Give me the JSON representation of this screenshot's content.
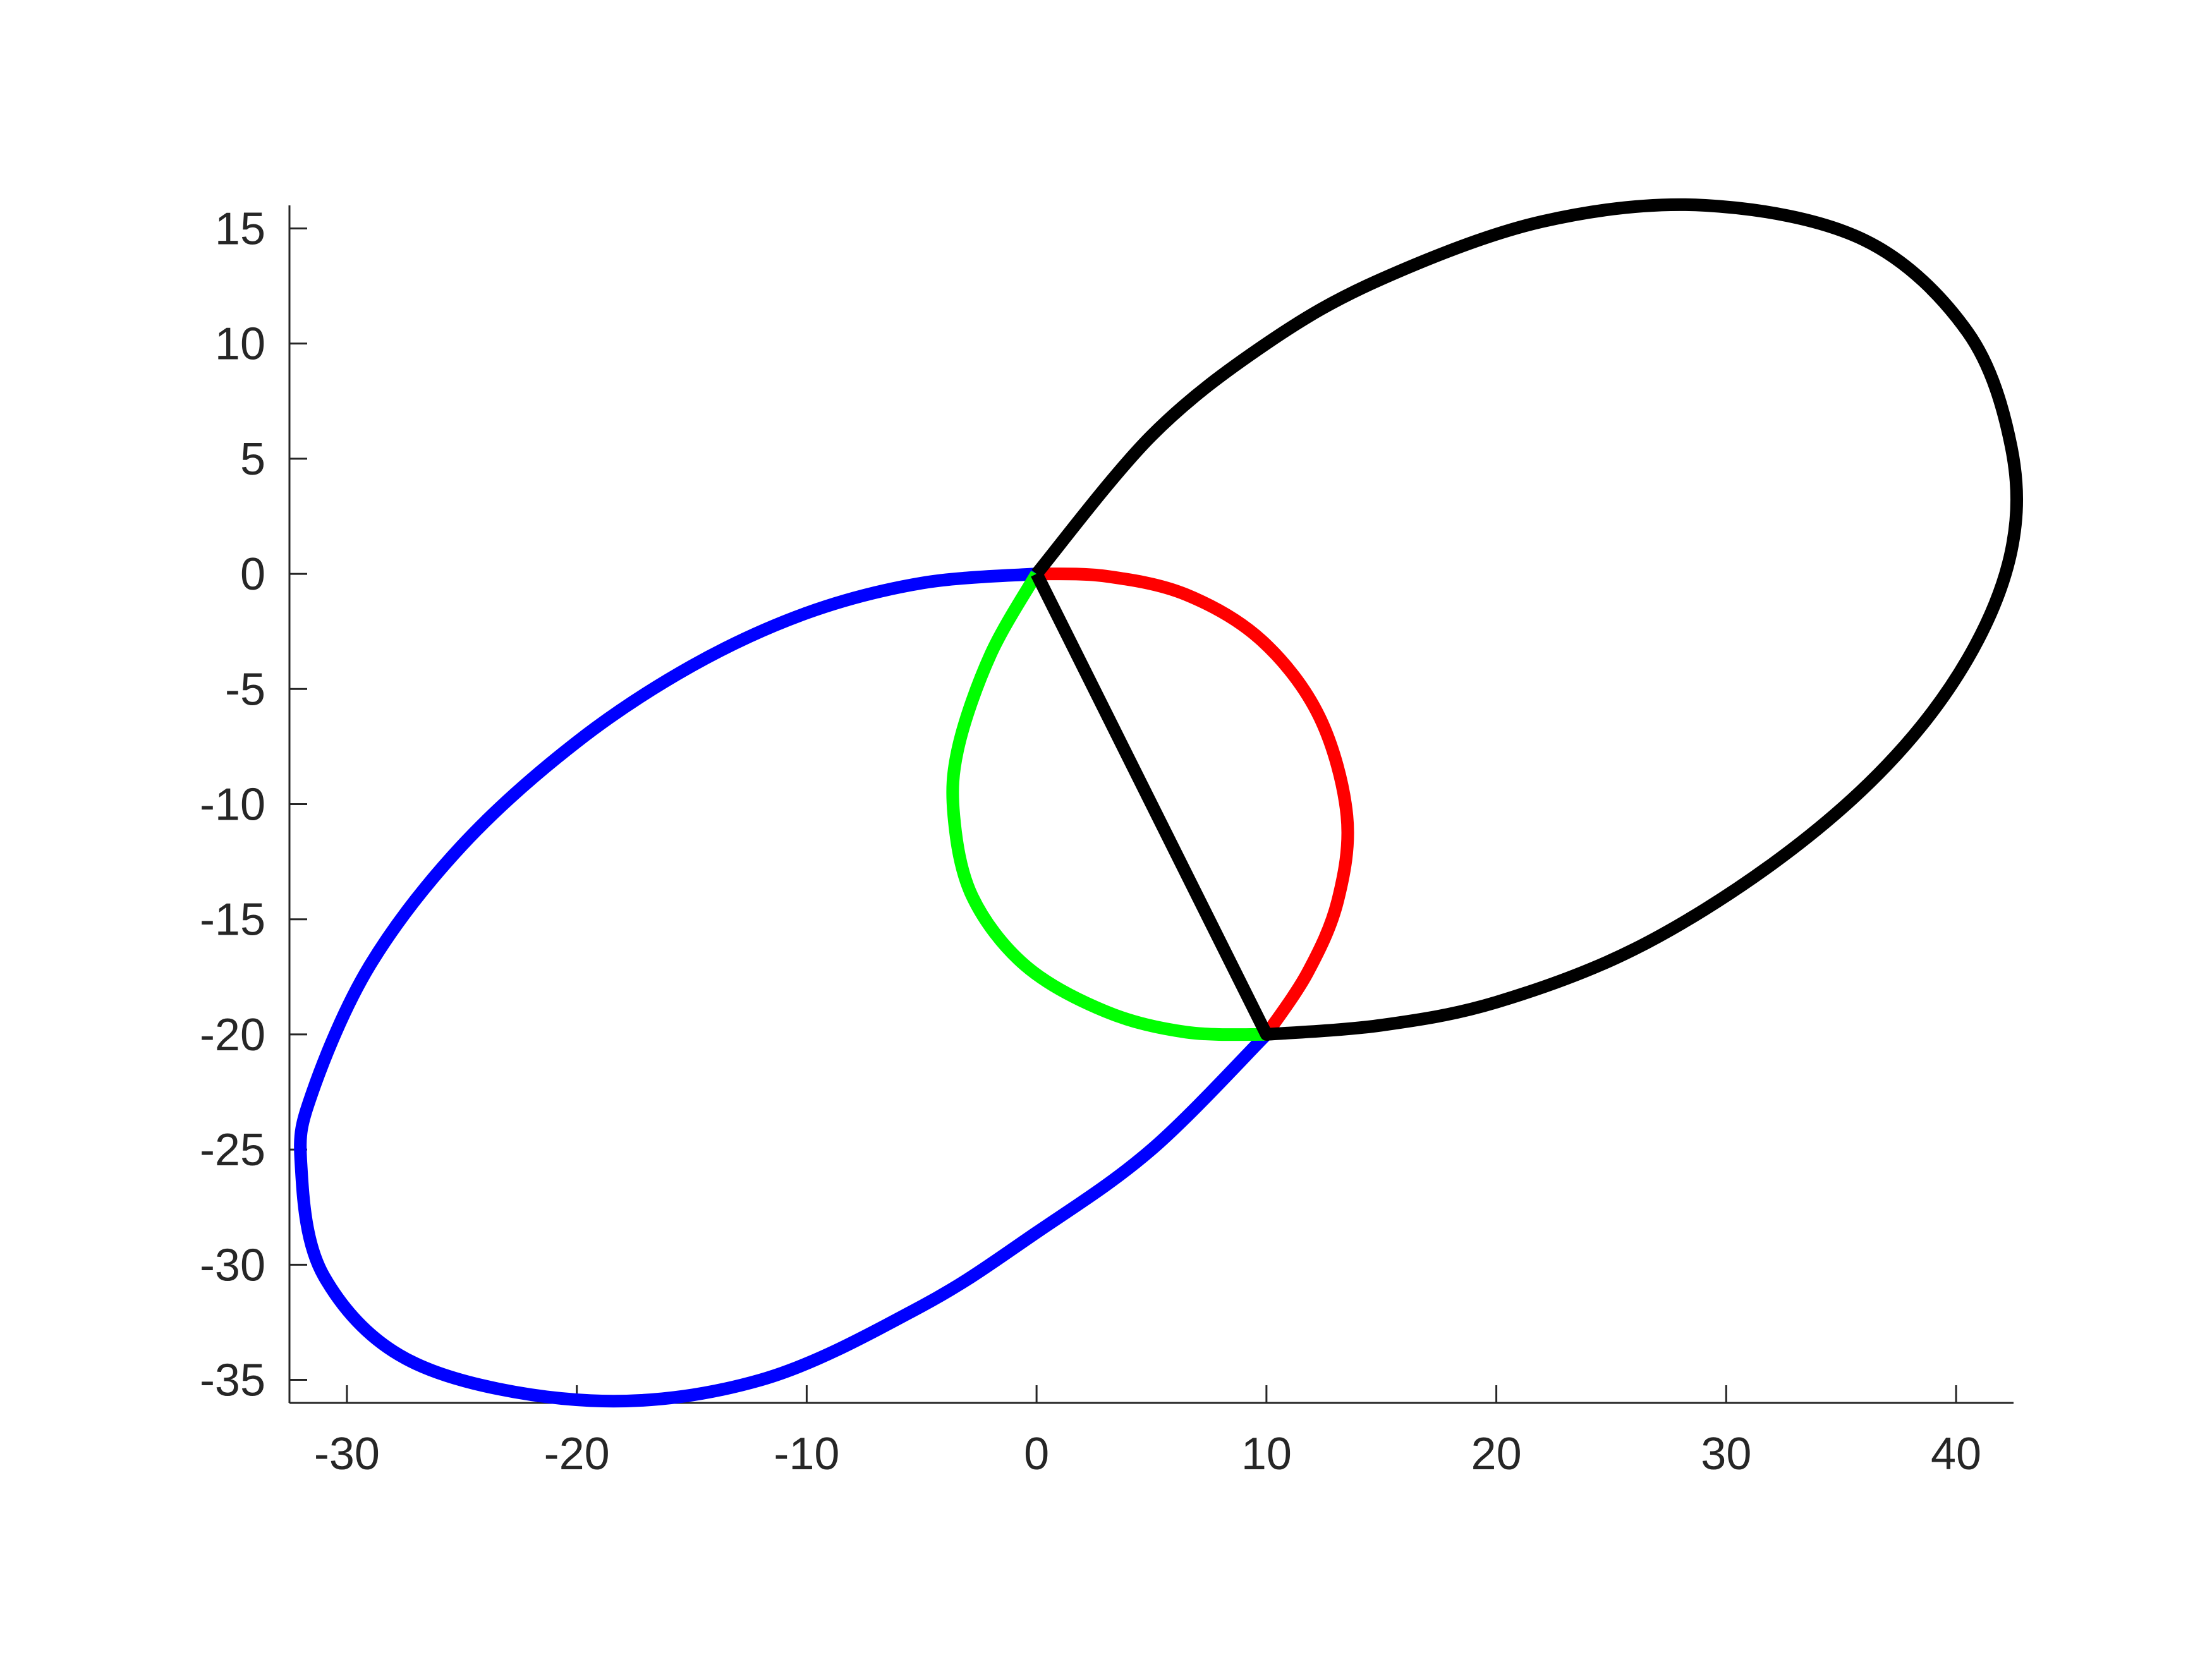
{
  "chart_data": {
    "type": "line",
    "title": "",
    "xlabel": "",
    "ylabel": "",
    "xlim": [
      -32.5,
      42.5
    ],
    "ylim": [
      -36,
      16
    ],
    "x_ticks": [
      "-30",
      "-20",
      "-10",
      "0",
      "10",
      "20",
      "30",
      "40"
    ],
    "y_ticks": [
      "15",
      "10",
      "5",
      "0",
      "-5",
      "-10",
      "-15",
      "-20",
      "-25",
      "-30",
      "-35"
    ],
    "grid": false,
    "legend": "none",
    "series": [
      {
        "color": "#0000ff",
        "points": [
          [
            0,
            0
          ],
          [
            -5,
            -0.4
          ],
          [
            -10,
            -1.7
          ],
          [
            -15,
            -4
          ],
          [
            -20,
            -7.3
          ],
          [
            -25,
            -11.8
          ],
          [
            -29,
            -17
          ],
          [
            -31.5,
            -22.5
          ],
          [
            -32,
            -25.6
          ],
          [
            -31,
            -30.5
          ],
          [
            -27,
            -34.3
          ],
          [
            -19.4,
            -35.9
          ],
          [
            -12,
            -35
          ],
          [
            -5,
            -31.8
          ],
          [
            0,
            -28.6
          ],
          [
            5,
            -25
          ],
          [
            10,
            -20
          ]
        ]
      },
      {
        "color": "#00ff00",
        "points": [
          [
            0,
            0
          ],
          [
            -2,
            -3.5
          ],
          [
            -3.4,
            -7.5
          ],
          [
            -3.6,
            -10.5
          ],
          [
            -2.8,
            -14
          ],
          [
            -0.5,
            -17
          ],
          [
            3,
            -19
          ],
          [
            6.5,
            -19.9
          ],
          [
            10,
            -20
          ]
        ]
      },
      {
        "color": "#ff0000",
        "points": [
          [
            0,
            0
          ],
          [
            3,
            -0.1
          ],
          [
            6.5,
            -0.9
          ],
          [
            9.8,
            -2.9
          ],
          [
            12.3,
            -6.2
          ],
          [
            13.5,
            -10.5
          ],
          [
            13.1,
            -14.2
          ],
          [
            11.8,
            -17.3
          ],
          [
            10,
            -20
          ]
        ]
      },
      {
        "color": "#000000",
        "points": [
          [
            0,
            0
          ],
          [
            10,
            -20
          ],
          [
            15,
            -19.6
          ],
          [
            20,
            -18.6
          ],
          [
            26,
            -16.3
          ],
          [
            32,
            -12.6
          ],
          [
            37,
            -8.3
          ],
          [
            40.5,
            -3.7
          ],
          [
            42.4,
            1
          ],
          [
            42.4,
            5.5
          ],
          [
            40.5,
            10.5
          ],
          [
            36,
            14.5
          ],
          [
            29.1,
            16
          ],
          [
            22,
            15.3
          ],
          [
            15,
            12.8
          ],
          [
            10,
            10
          ],
          [
            5,
            6
          ],
          [
            0,
            0
          ]
        ]
      }
    ]
  }
}
